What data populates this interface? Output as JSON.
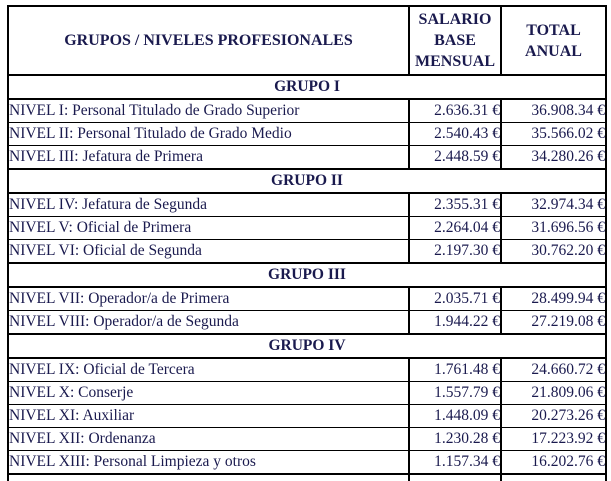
{
  "colors": {
    "text": "#1a1a4e",
    "border": "#000000",
    "background": "#ffffff"
  },
  "table": {
    "header": {
      "groups_col": "GRUPOS / NIVELES PROFESIONALES",
      "salary_col_lines": [
        "SALARIO",
        "BASE",
        "MENSUAL"
      ],
      "total_col_lines": [
        "TOTAL",
        "ANUAL"
      ]
    },
    "groups": [
      {
        "label": "GRUPO I",
        "rows": [
          {
            "level": "NIVEL I: Personal Titulado de Grado Superior",
            "monthly_salary": "2.636.31 €",
            "annual_total": "36.908.34 €"
          },
          {
            "level": "NIVEL II: Personal Titulado de Grado Medio",
            "monthly_salary": "2.540.43 €",
            "annual_total": "35.566.02 €"
          },
          {
            "level": "NIVEL III: Jefatura de Primera",
            "monthly_salary": "2.448.59 €",
            "annual_total": "34.280.26 €"
          }
        ]
      },
      {
        "label": "GRUPO II",
        "rows": [
          {
            "level": "NIVEL IV: Jefatura de Segunda",
            "monthly_salary": "2.355.31 €",
            "annual_total": "32.974.34 €"
          },
          {
            "level": "NIVEL V: Oficial de Primera",
            "monthly_salary": "2.264.04 €",
            "annual_total": "31.696.56 €"
          },
          {
            "level": "NIVEL VI: Oficial de Segunda",
            "monthly_salary": "2.197.30 €",
            "annual_total": "30.762.20 €"
          }
        ]
      },
      {
        "label": "GRUPO III",
        "rows": [
          {
            "level": "NIVEL VII: Operador/a de Primera",
            "monthly_salary": "2.035.71 €",
            "annual_total": "28.499.94 €"
          },
          {
            "level": "NIVEL VIII: Operador/a de Segunda",
            "monthly_salary": "1.944.22 €",
            "annual_total": "27.219.08 €"
          }
        ]
      },
      {
        "label": "GRUPO IV",
        "rows": [
          {
            "level": "NIVEL IX: Oficial de Tercera",
            "monthly_salary": "1.761.48 €",
            "annual_total": "24.660.72 €"
          },
          {
            "level": "NIVEL X: Conserje",
            "monthly_salary": "1.557.79 €",
            "annual_total": "21.809.06 €"
          },
          {
            "level": "NIVEL XI: Auxiliar",
            "monthly_salary": "1.448.09 €",
            "annual_total": "20.273.26 €"
          },
          {
            "level": "NIVEL XII: Ordenanza",
            "monthly_salary": "1.230.28 €",
            "annual_total": "17.223.92 €"
          },
          {
            "level": "NIVEL XIII: Personal Limpieza y otros",
            "monthly_salary": "1.157.34 €",
            "annual_total": "16.202.76 €"
          }
        ]
      }
    ]
  }
}
